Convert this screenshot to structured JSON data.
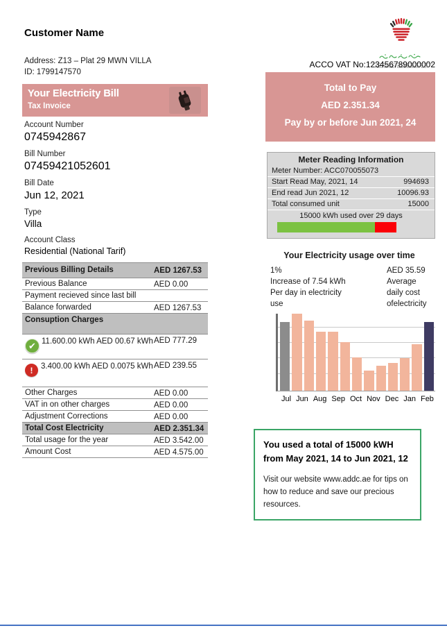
{
  "customer": {
    "name": "Customer Name",
    "address": "Address: Z13 – Plat 29 MWN VILLA",
    "id": "ID: 1799147570"
  },
  "banner": {
    "title": "Your Electricity Bill",
    "subtitle": "Tax Invoice",
    "icon": "power-plug-icon"
  },
  "account_fields": [
    {
      "label": "Account Number",
      "value": "0745942867"
    },
    {
      "label": "Bill Number",
      "value": "07459421052601"
    },
    {
      "label": "Bill Date",
      "value": "Jun 12, 2021"
    },
    {
      "label": "Type",
      "value": "Villa"
    },
    {
      "label": "Account Class",
      "value": "Residential (National Tarif)"
    }
  ],
  "billing_table": {
    "rows": [
      {
        "label": "Previous Billing Details",
        "value": "AED 1267.53"
      },
      {
        "label": "Previous Balance",
        "value": "AED 0.00"
      },
      {
        "label": "Payment recieved since last bill",
        "value": ""
      },
      {
        "label": "Balance forwarded",
        "value": "AED 1267.53"
      },
      {
        "label": "Consuption Charges",
        "value": ""
      },
      {
        "label": "11.600.00 kWh AED 00.67 kWh",
        "value": "AED 777.29",
        "icon": "check"
      },
      {
        "label": "3.400.00 kWh  AED 0.0075 kWh",
        "value": "AED 239.55",
        "icon": "warning"
      },
      {
        "label": "Other Charges",
        "value": "AED 0.00"
      },
      {
        "label": "VAT in on other charges",
        "value": "AED 0.00"
      },
      {
        "label": "Adjustment Corrections",
        "value": "AED 0.00"
      },
      {
        "label": "Total Cost Electricity",
        "value": "AED 2.351.34"
      },
      {
        "label": "Total usage for the year",
        "value": "AED 3.542.00"
      },
      {
        "label": "Amount Cost",
        "value": "AED 4.575.00"
      }
    ]
  },
  "logo": {
    "company": "Abu Dhabi Distribution Co."
  },
  "vat_line": "ACCO VAT No:123456789000002",
  "total_to_pay": {
    "line1": "Total to Pay",
    "line2": "AED 2.351.34",
    "line3": "Pay by or before Jun 2021, 24"
  },
  "meter_box": {
    "title": "Meter Reading Information",
    "meter_number": "Meter Number: ACC070055073",
    "rows": [
      {
        "label": "Start Read May, 2021, 14",
        "value": "994693"
      },
      {
        "label": "End read Jun 2021, 12",
        "value": "10096.93"
      },
      {
        "label": "Total consumed unit",
        "value": "15000"
      }
    ],
    "usage_note": "15000 kWh used over 29 days",
    "bar": {
      "green_pct": 82,
      "red_pct": 18
    }
  },
  "usage_section": {
    "title": "Your Electricity usage over time",
    "left_lines": [
      "1%",
      "Increase of 7.54 kWh",
      "Per day in electricity",
      "use"
    ],
    "right_lines": [
      "AED 35.59",
      "Average",
      "daily cost",
      "ofelectricity"
    ]
  },
  "chart_data": {
    "type": "bar",
    "title": "",
    "xlabel": "",
    "ylabel": "",
    "x_labels": [
      "Jul",
      "Jun",
      "Aug",
      "Sep",
      "Oct",
      "Nov",
      "Dec",
      "Jan",
      "Feb"
    ],
    "note": "13 bars; values are percent of plot height (no numeric y-axis shown); first bar gray, last bar navy, middle bars salmon",
    "grid": true,
    "bars": [
      {
        "value": 89,
        "color": "#8c8c8c"
      },
      {
        "value": 100,
        "color": "#f2b59c"
      },
      {
        "value": 91,
        "color": "#f2b59c"
      },
      {
        "value": 77,
        "color": "#f2b59c"
      },
      {
        "value": 77,
        "color": "#f2b59c"
      },
      {
        "value": 63,
        "color": "#f2b59c"
      },
      {
        "value": 43,
        "color": "#f2b59c"
      },
      {
        "value": 26,
        "color": "#f2b59c"
      },
      {
        "value": 32,
        "color": "#f2b59c"
      },
      {
        "value": 36,
        "color": "#f2b59c"
      },
      {
        "value": 42,
        "color": "#f2b59c"
      },
      {
        "value": 60,
        "color": "#f2b59c"
      },
      {
        "value": 89,
        "color": "#3f3b63"
      }
    ]
  },
  "footer_box": {
    "bold_text": "You used a total of 15000 kWH from May 2021, 14 to Jun 2021, 12",
    "body_text": "Visit our website www.addc.ae for tips on how to reduce and save our precious resources."
  },
  "colors": {
    "pink": "#d89694",
    "table_header_gray": "#bfbfbf",
    "meter_bg": "#d9d9d9",
    "progress_green": "#7cc242",
    "progress_red": "#fb0007",
    "chart_salmon": "#f2b59c",
    "chart_gray": "#8c8c8c",
    "chart_navy": "#3f3b63",
    "footer_border": "#3aa566",
    "bottom_rule": "#4472c4",
    "check_green": "#6fae3e",
    "warn_red": "#cf2b24"
  }
}
